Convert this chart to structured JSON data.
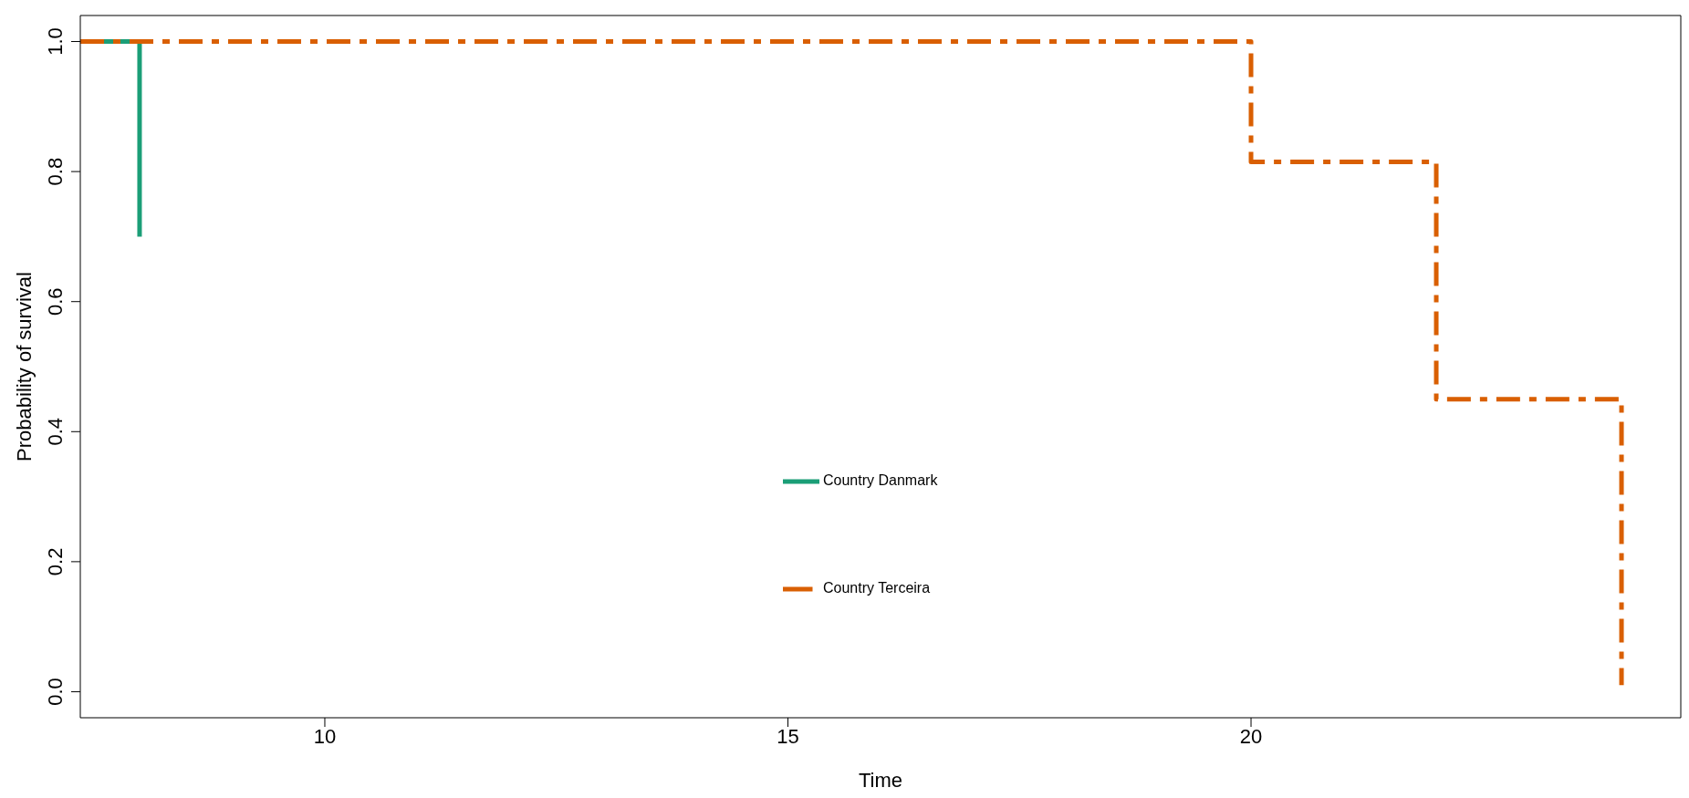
{
  "chart_data": {
    "type": "step",
    "xlabel": "Time",
    "ylabel": "Probability of survival",
    "xlim": [
      7.36,
      24.64
    ],
    "xticks": [
      10,
      15,
      20
    ],
    "ylim": [
      -0.04,
      1.04
    ],
    "yticks": [
      {
        "value": 0,
        "label": "0.0"
      },
      {
        "value": 0.2,
        "label": "0.2"
      },
      {
        "value": 0.4,
        "label": "0.4"
      },
      {
        "value": 0.6,
        "label": "0.6"
      },
      {
        "value": 0.8,
        "label": "0.8"
      },
      {
        "value": 1,
        "label": "1.0"
      }
    ],
    "grid": false,
    "legend": "bottom",
    "marker": "none",
    "series": [
      {
        "name": "Country Danmark",
        "color": "#1b9e77",
        "line_style": "solid",
        "x": [
          7.36,
          8
        ],
        "values": [
          1,
          0.7
        ]
      },
      {
        "name": "Country Terceira",
        "color": "#d95f02",
        "line_style": "dashed",
        "x": [
          7.36,
          20,
          22,
          24
        ],
        "values": [
          1,
          0.815,
          0.45,
          0.01
        ]
      }
    ]
  }
}
